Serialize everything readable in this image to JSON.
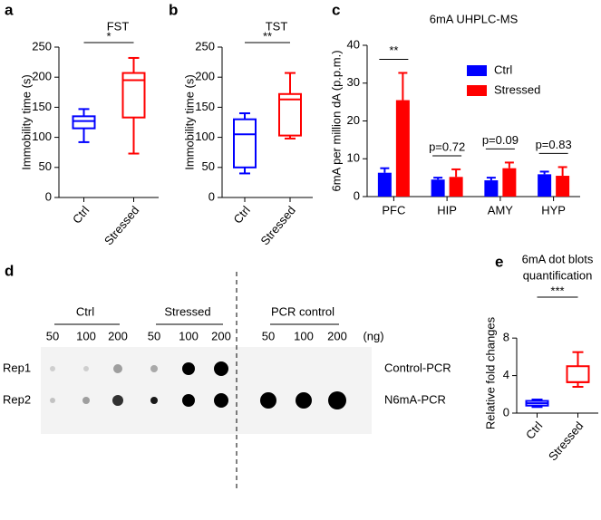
{
  "panel_labels": [
    "a",
    "b",
    "c",
    "d",
    "e"
  ],
  "chart_data": [
    {
      "type": "box",
      "title": "FST",
      "y_label": "Immobility time (s)",
      "categories": [
        "Ctrl",
        "Stressed"
      ],
      "colors": [
        "#0000ff",
        "#ff0000"
      ],
      "boxes": [
        {
          "min": 92,
          "q1": 115,
          "median": 127,
          "q3": 135,
          "max": 147
        },
        {
          "min": 73,
          "q1": 133,
          "median": 195,
          "q3": 207,
          "max": 232
        }
      ],
      "annotation": "*",
      "ylim": [
        0,
        250
      ],
      "yticks": [
        0,
        50,
        100,
        150,
        200,
        250
      ]
    },
    {
      "type": "box",
      "title": "TST",
      "y_label": "Immobility time (s)",
      "categories": [
        "Ctrl",
        "Stressed"
      ],
      "colors": [
        "#0000ff",
        "#ff0000"
      ],
      "boxes": [
        {
          "min": 40,
          "q1": 50,
          "median": 105,
          "q3": 130,
          "max": 140
        },
        {
          "min": 98,
          "q1": 103,
          "median": 163,
          "q3": 172,
          "max": 207
        }
      ],
      "annotation": "**",
      "ylim": [
        0,
        250
      ],
      "yticks": [
        0,
        50,
        100,
        150,
        200,
        250
      ]
    },
    {
      "type": "bar",
      "title": "6mA UHPLC-MS",
      "y_label": "6mA per million dA (p.p.m.)",
      "categories": [
        "PFC",
        "HIP",
        "AMY",
        "HYP"
      ],
      "series": [
        {
          "name": "Ctrl",
          "color": "#0000ff",
          "values": [
            6.3,
            4.5,
            4.3,
            5.9
          ],
          "errors": [
            1.2,
            0.5,
            0.7,
            0.7
          ]
        },
        {
          "name": "Stressed",
          "color": "#ff0000",
          "values": [
            25.5,
            5.2,
            7.5,
            5.5
          ],
          "errors": [
            7.2,
            2.0,
            1.5,
            2.3
          ]
        }
      ],
      "annotations": [
        "**",
        "p=0.72",
        "p=0.09",
        "p=0.83"
      ],
      "ylim": [
        0,
        40
      ],
      "yticks": [
        0,
        10,
        20,
        30,
        40
      ]
    },
    {
      "type": "box",
      "title": [
        "6mA dot blots",
        "quantification"
      ],
      "y_label": "Relative fold changes",
      "categories": [
        "Ctrl",
        "Stressed"
      ],
      "colors": [
        "#0000ff",
        "#ff0000"
      ],
      "boxes": [
        {
          "min": 0.65,
          "q1": 0.8,
          "median": 1.05,
          "q3": 1.3,
          "max": 1.45
        },
        {
          "min": 2.8,
          "q1": 3.3,
          "median": 3.3,
          "q3": 5.0,
          "max": 6.5
        }
      ],
      "annotation": "***",
      "ylim": [
        0,
        8.5
      ],
      "yticks": [
        0,
        4,
        8
      ]
    }
  ],
  "dot_blot": {
    "groups": [
      "Ctrl",
      "Stressed",
      "PCR control"
    ],
    "amounts": [
      50,
      100,
      200,
      50,
      100,
      200,
      50,
      100,
      200
    ],
    "unit": "(ng)",
    "rows": [
      "Rep1",
      "Rep2"
    ],
    "row_labels_right": [
      "Control-PCR",
      "N6mA-PCR"
    ]
  }
}
